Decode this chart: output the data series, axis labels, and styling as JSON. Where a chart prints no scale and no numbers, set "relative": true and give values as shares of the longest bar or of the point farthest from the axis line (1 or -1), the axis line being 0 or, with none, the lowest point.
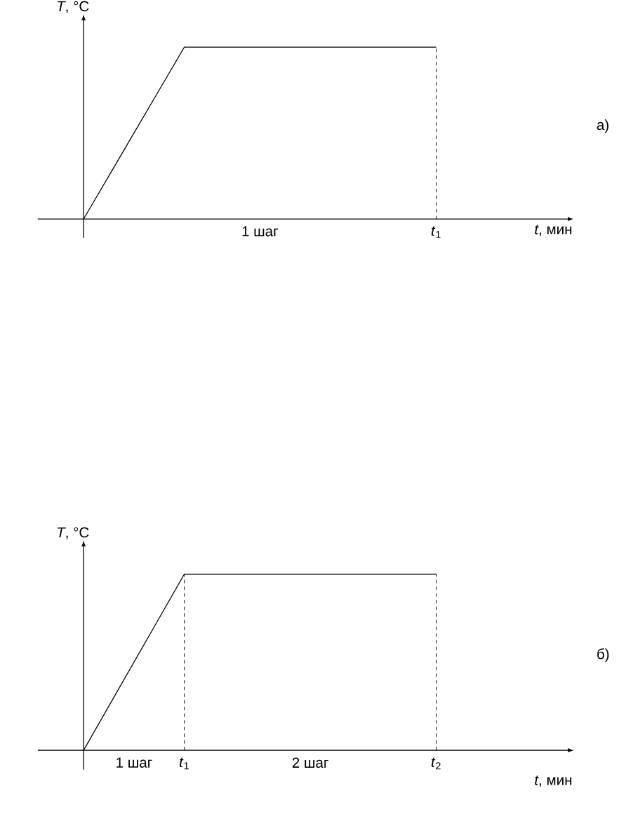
{
  "chart_data": [
    {
      "type": "line",
      "relative": true,
      "ylabel": "*T*, °C",
      "xlabel": "*t*, мин",
      "categories": [
        null,
        null,
        null,
        null,
        null,
        null,
        null,
        "1 шаг",
        null,
        null,
        null,
        null,
        null,
        null,
        "*t*$_{1}$"
      ],
      "values": [
        0,
        0.25,
        0.5,
        0.75,
        1,
        1,
        1,
        1,
        1,
        1,
        1,
        1,
        1,
        1,
        1
      ],
      "color": "#000000",
      "ref_lines": [
        {
          "axis": "x",
          "value": "*t*$_{1}$",
          "line_style": "dashed"
        }
      ],
      "annotations": [
        "а)"
      ]
    },
    {
      "type": "line",
      "relative": true,
      "ylabel": "*T*, °C",
      "xlabel": "*t*, мин",
      "categories": [
        null,
        null,
        "1 шаг",
        null,
        "*t*$_{1}$",
        null,
        null,
        null,
        null,
        "2 шаг",
        null,
        null,
        null,
        null,
        "*t*$_{2}$"
      ],
      "values": [
        0,
        0.25,
        0.5,
        0.75,
        1,
        1,
        1,
        1,
        1,
        1,
        1,
        1,
        1,
        1,
        1
      ],
      "color": "#000000",
      "ref_lines": [
        {
          "axis": "x",
          "value": "*t*$_{1}$",
          "line_style": "dashed"
        },
        {
          "axis": "x",
          "value": "*t*$_{2}$",
          "line_style": "dashed"
        }
      ],
      "annotations": [
        "б)"
      ]
    }
  ]
}
